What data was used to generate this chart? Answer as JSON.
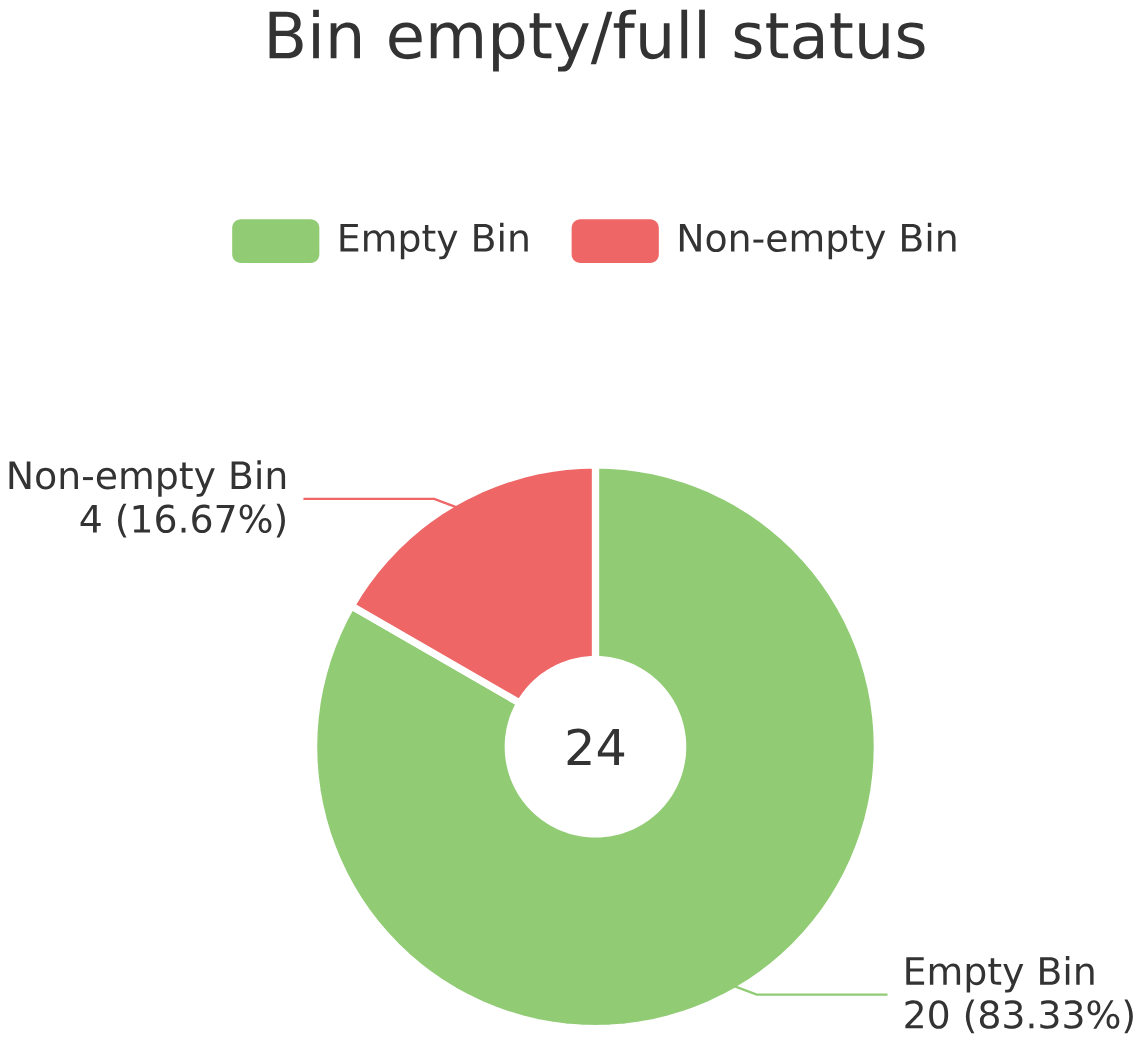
{
  "chart_data": {
    "type": "donut",
    "title": "Bin empty/full status",
    "categories": [
      "Empty Bin",
      "Non-empty Bin"
    ],
    "values": [
      20,
      4
    ],
    "colors": [
      "#91cc75",
      "#ee6666"
    ],
    "value_labels": [
      "20 (83.33%)",
      "4 (16.67%)"
    ],
    "legend": "top",
    "annotations": [
      "24"
    ]
  }
}
